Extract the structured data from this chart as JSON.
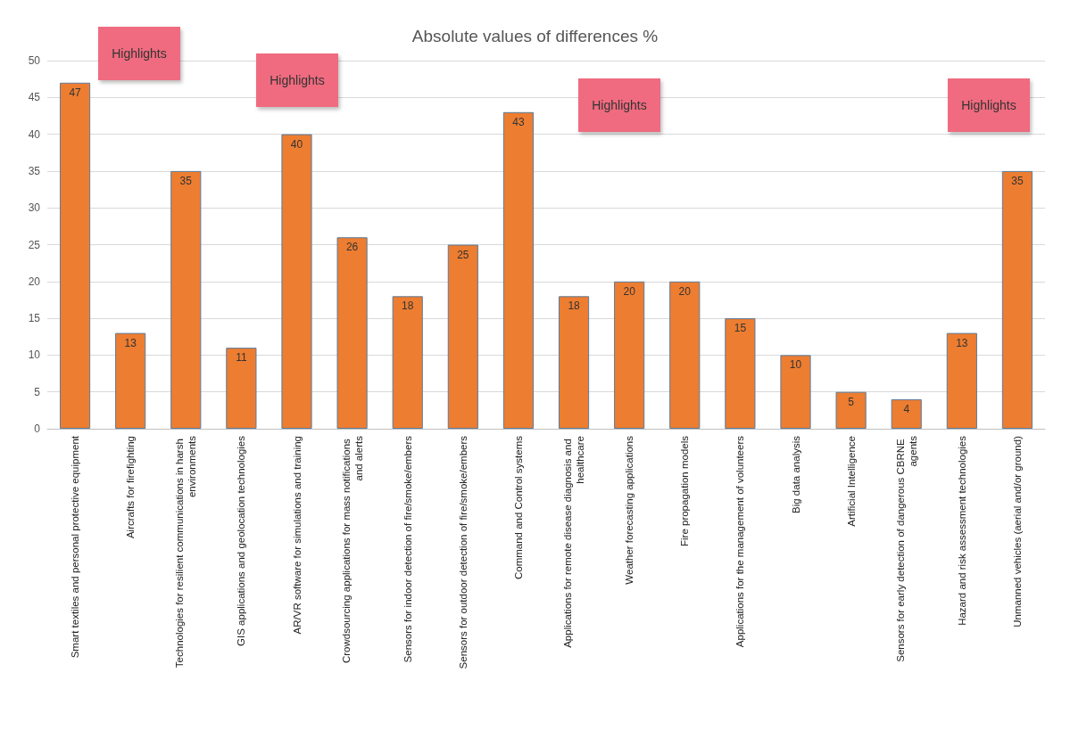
{
  "chart_data": {
    "type": "bar",
    "title": "Absolute values of differences %",
    "categories": [
      "Smart textiles and personal protective equipment",
      "Aircrafts for firefighting",
      "Technologies for resilient communications in harsh environments",
      "GIS applications and geolocation technologies",
      "AR/VR software for simulations and training",
      "Crowdsourcing applications for mass notifications and alerts",
      "Sensors for indoor detection of fire/smoke/embers",
      "Sensors for outdoor detection of fire/smoke/embers",
      "Command and Control systems",
      "Applications for remote disease diagnosis and healthcare",
      "Weather forecasting applications",
      "Fire propagation models",
      "Applications for the management of volunteers",
      "Big data analysis",
      "Artificial Intelligence",
      "Sensors for early detection of dangerous CBRNE agents",
      "Hazard and risk assessment technologies",
      "Unmanned vehicles (aerial and/or ground)"
    ],
    "values": [
      47,
      13,
      35,
      11,
      40,
      26,
      18,
      25,
      43,
      18,
      20,
      20,
      15,
      10,
      5,
      4,
      13,
      35
    ],
    "color": "#ed7d31",
    "data_labels": true,
    "grid": "y",
    "ylim": [
      0,
      50
    ],
    "yticks": [
      0,
      5,
      10,
      15,
      20,
      25,
      30,
      35,
      40,
      45,
      50
    ],
    "annotations": [
      "Highlights",
      "Highlights",
      "Highlights",
      "Highlights"
    ]
  }
}
